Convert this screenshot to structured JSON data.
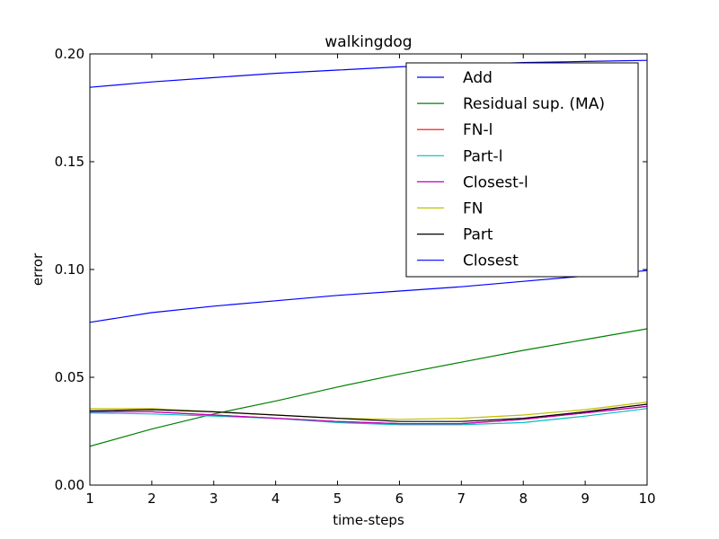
{
  "chart_data": {
    "type": "line",
    "title": "walkingdog",
    "xlabel": "time-steps",
    "ylabel": "error",
    "xlim": [
      1,
      10
    ],
    "ylim": [
      0,
      0.2
    ],
    "xticks": [
      "1",
      "2",
      "3",
      "4",
      "5",
      "6",
      "7",
      "8",
      "9",
      "10"
    ],
    "yticks": [
      "0.00",
      "0.05",
      "0.10",
      "0.15",
      "0.20"
    ],
    "grid": false,
    "legend_position": "top-right",
    "x": [
      1,
      2,
      3,
      4,
      5,
      6,
      7,
      8,
      9,
      10
    ],
    "series": [
      {
        "name": "Add",
        "color": "#0000ff",
        "values": [
          0.1845,
          0.187,
          0.189,
          0.191,
          0.1925,
          0.194,
          0.195,
          0.196,
          0.1965,
          0.197
        ]
      },
      {
        "name": "Residual sup. (MA)",
        "color": "#008000",
        "values": [
          0.018,
          0.026,
          0.033,
          0.039,
          0.0455,
          0.0515,
          0.057,
          0.0625,
          0.0675,
          0.0725
        ]
      },
      {
        "name": "FN-l",
        "color": "#ff0000",
        "values": [
          0.034,
          0.034,
          0.0325,
          0.031,
          0.0295,
          0.0285,
          0.0285,
          0.0305,
          0.0335,
          0.0365
        ]
      },
      {
        "name": "Part-l",
        "color": "#00bfbf",
        "values": [
          0.0335,
          0.033,
          0.032,
          0.031,
          0.029,
          0.028,
          0.028,
          0.029,
          0.032,
          0.0355
        ]
      },
      {
        "name": "Closest-l",
        "color": "#bf00bf",
        "values": [
          0.034,
          0.034,
          0.0325,
          0.031,
          0.0295,
          0.0285,
          0.0285,
          0.0305,
          0.0335,
          0.0365
        ]
      },
      {
        "name": "FN",
        "color": "#bfbf00",
        "values": [
          0.0355,
          0.0355,
          0.034,
          0.0325,
          0.031,
          0.0305,
          0.031,
          0.0325,
          0.035,
          0.0385
        ]
      },
      {
        "name": "Part",
        "color": "#000000",
        "values": [
          0.0345,
          0.035,
          0.034,
          0.0325,
          0.031,
          0.0295,
          0.0295,
          0.031,
          0.034,
          0.0375
        ]
      },
      {
        "name": "Closest",
        "color": "#0000ff",
        "values": [
          0.0755,
          0.08,
          0.083,
          0.0855,
          0.088,
          0.09,
          0.092,
          0.0945,
          0.097,
          0.0995
        ]
      }
    ]
  }
}
